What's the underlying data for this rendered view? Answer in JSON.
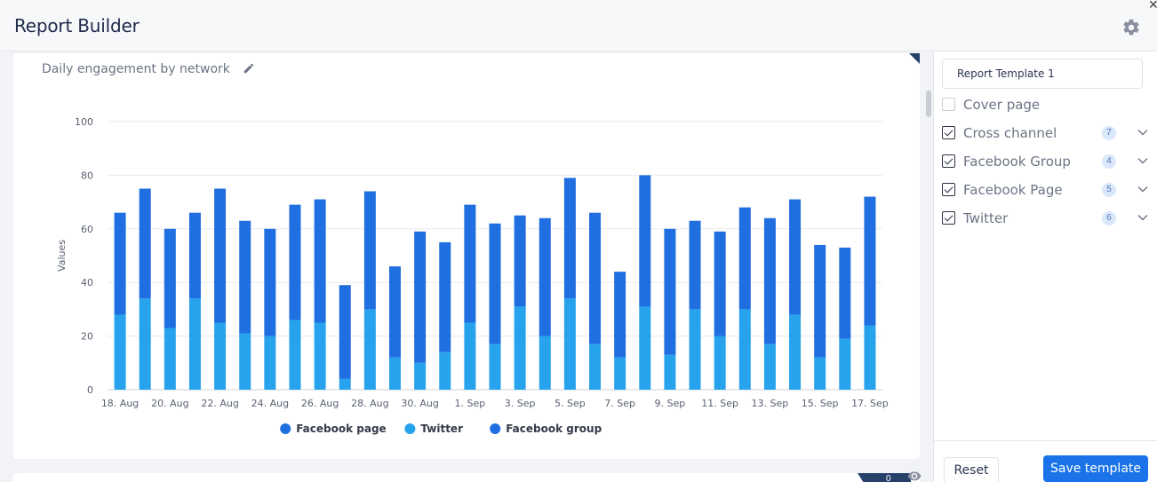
{
  "header": {
    "title": "Report Builder"
  },
  "widget": {
    "title": "Daily engagement by network"
  },
  "chart_data": {
    "type": "bar",
    "stacked": true,
    "ylabel": "Values",
    "ylim": [
      0,
      100
    ],
    "yticks": [
      0,
      20,
      40,
      60,
      80,
      100
    ],
    "categories": [
      "18. Aug",
      "19. Aug",
      "20. Aug",
      "21. Aug",
      "22. Aug",
      "23. Aug",
      "24. Aug",
      "25. Aug",
      "26. Aug",
      "27. Aug",
      "28. Aug",
      "29. Aug",
      "30. Aug",
      "31. Aug",
      "1. Sep",
      "2. Sep",
      "3. Sep",
      "4. Sep",
      "5. Sep",
      "6. Sep",
      "7. Sep",
      "8. Sep",
      "9. Sep",
      "10. Sep",
      "11. Sep",
      "12. Sep",
      "13. Sep",
      "14. Sep",
      "15. Sep",
      "16. Sep",
      "17. Sep"
    ],
    "xtick_labels": [
      "18. Aug",
      "20. Aug",
      "22. Aug",
      "24. Aug",
      "26. Aug",
      "28. Aug",
      "30. Aug",
      "1. Sep",
      "3. Sep",
      "5. Sep",
      "7. Sep",
      "9. Sep",
      "11. Sep",
      "13. Sep",
      "15. Sep",
      "17. Sep"
    ],
    "series": [
      {
        "name": "Facebook page",
        "color": "#1f6fe0",
        "values": [
          0,
          0,
          0,
          0,
          0,
          0,
          0,
          0,
          0,
          0,
          0,
          0,
          0,
          0,
          0,
          0,
          0,
          0,
          0,
          0,
          0,
          0,
          0,
          0,
          0,
          0,
          0,
          0,
          0,
          0,
          0
        ]
      },
      {
        "name": "Twitter",
        "color": "#27a3ed",
        "values": [
          28,
          34,
          23,
          34,
          25,
          21,
          20,
          26,
          25,
          4,
          30,
          12,
          10,
          14,
          25,
          17,
          31,
          20,
          34,
          17,
          12,
          31,
          13,
          30,
          20,
          30,
          17,
          28,
          12,
          19,
          24
        ]
      },
      {
        "name": "Facebook group",
        "color": "#1f6fe0",
        "values": [
          38,
          41,
          37,
          32,
          50,
          42,
          40,
          43,
          46,
          35,
          44,
          34,
          49,
          41,
          44,
          45,
          34,
          44,
          45,
          49,
          32,
          49,
          47,
          33,
          39,
          38,
          47,
          43,
          42,
          34,
          48
        ]
      }
    ],
    "legend_position": "bottom",
    "grid": true
  },
  "panel": {
    "template_name": "Report Template 1",
    "items": [
      {
        "label": "Cover page",
        "checked": false,
        "count": ""
      },
      {
        "label": "Cross channel",
        "checked": true,
        "count": "7"
      },
      {
        "label": "Facebook Group",
        "checked": true,
        "count": "4"
      },
      {
        "label": "Facebook Page",
        "checked": true,
        "count": "5"
      },
      {
        "label": "Twitter",
        "checked": true,
        "count": "6"
      }
    ],
    "reset_label": "Reset",
    "save_label": "Save template"
  },
  "widget2": {
    "badge": "0"
  }
}
